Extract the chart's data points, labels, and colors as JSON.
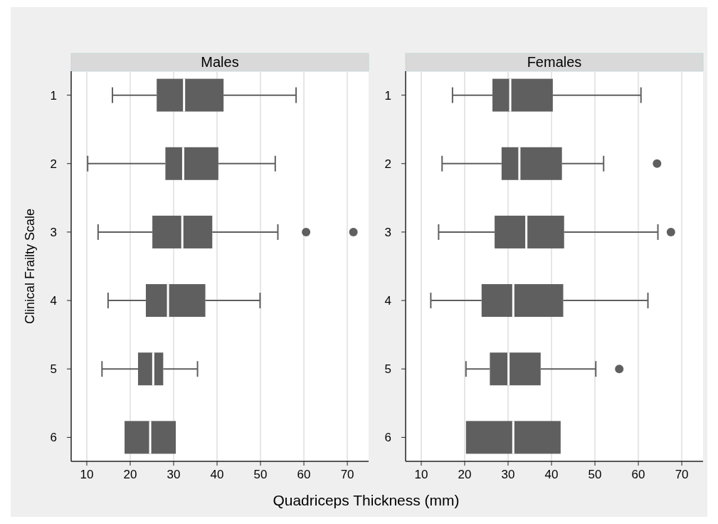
{
  "chart_data": [
    {
      "type": "box",
      "title": "Males",
      "orientation": "horizontal",
      "ylabel": "Clinical Frailty Scale",
      "xlabel": "Quadriceps Thickness (mm)",
      "categories": [
        "1",
        "2",
        "3",
        "4",
        "5",
        "6"
      ],
      "xlim": [
        6.4,
        74.9
      ],
      "xticks": [
        10,
        20,
        30,
        40,
        50,
        60,
        70
      ],
      "grid": "x",
      "color": "#5f5f5f",
      "boxes": [
        {
          "low": 15.9,
          "q1": 26.1,
          "median": 32.4,
          "q3": 41.5,
          "high": 58.2
        },
        {
          "low": 10.2,
          "q1": 28.1,
          "median": 32.2,
          "q3": 40.3,
          "high": 53.4
        },
        {
          "low": 12.6,
          "q1": 25.1,
          "median": 32.0,
          "q3": 38.9,
          "high": 54.0,
          "outliers": [
            60.5,
            71.4
          ]
        },
        {
          "low": 14.9,
          "q1": 23.6,
          "median": 28.7,
          "q3": 37.3,
          "high": 49.9
        },
        {
          "low": 13.5,
          "q1": 21.8,
          "median": 25.3,
          "q3": 27.6,
          "high": 35.5
        },
        {
          "low": 18.7,
          "q1": 18.7,
          "median": 24.6,
          "q3": 30.5,
          "high": 30.5
        }
      ]
    },
    {
      "type": "box",
      "title": "Females",
      "orientation": "horizontal",
      "categories": [
        "1",
        "2",
        "3",
        "4",
        "5",
        "6"
      ],
      "xlim": [
        6.4,
        74.9
      ],
      "xticks": [
        10,
        20,
        30,
        40,
        50,
        60,
        70
      ],
      "grid": "x",
      "color": "#5f5f5f",
      "boxes": [
        {
          "low": 17.2,
          "q1": 26.4,
          "median": 30.5,
          "q3": 40.3,
          "high": 60.6
        },
        {
          "low": 14.8,
          "q1": 28.5,
          "median": 32.6,
          "q3": 42.4,
          "high": 52.0,
          "outliers": [
            64.3
          ]
        },
        {
          "low": 14.0,
          "q1": 26.9,
          "median": 34.2,
          "q3": 42.9,
          "high": 64.5,
          "outliers": [
            67.5
          ]
        },
        {
          "low": 12.2,
          "q1": 23.9,
          "median": 31.2,
          "q3": 42.7,
          "high": 62.2
        },
        {
          "low": 20.3,
          "q1": 25.8,
          "median": 30.1,
          "q3": 37.5,
          "high": 50.2,
          "outliers": [
            55.6
          ]
        },
        {
          "low": 20.3,
          "q1": 20.3,
          "median": 31.2,
          "q3": 42.1,
          "high": 42.1
        }
      ]
    }
  ]
}
